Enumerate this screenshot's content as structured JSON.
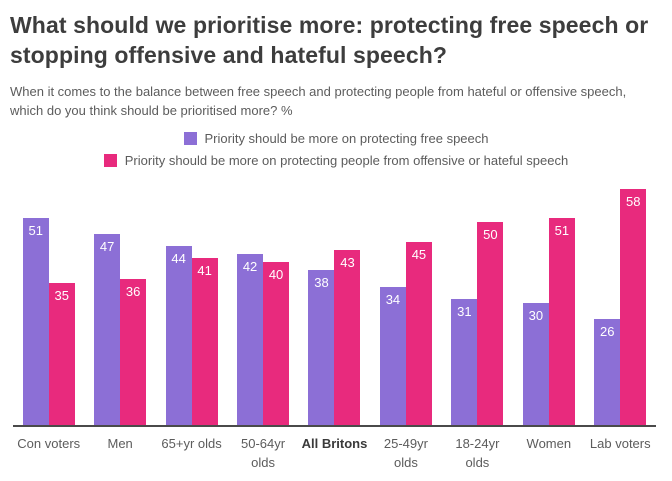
{
  "header": {
    "title": "What should we prioritise more: protecting free speech or stopping offensive and hateful speech?",
    "subtitle": "When it comes to the balance between free speech and protecting people from hateful or offensive speech, which do you think should be prioritised more? %"
  },
  "chart_data": {
    "type": "bar",
    "title": "What should we prioritise more: protecting free speech or stopping offensive and hateful speech?",
    "subtitle": "When it comes to the balance between free speech and protecting people from hateful or offensive speech, which do you think should be prioritised more? %",
    "categories": [
      "Con voters",
      "Men",
      "65+yr olds",
      "50-64yr olds",
      "All Britons",
      "25-49yr olds",
      "18-24yr olds",
      "Women",
      "Lab voters"
    ],
    "series": [
      {
        "name": "Priority should be more on protecting free speech",
        "color": "#8c6fd6",
        "values": [
          51,
          47,
          44,
          42,
          38,
          34,
          31,
          30,
          26
        ]
      },
      {
        "name": "Priority should be more on protecting people from offensive or hateful speech",
        "color": "#e82a7d",
        "values": [
          35,
          36,
          41,
          40,
          43,
          45,
          50,
          51,
          58
        ]
      }
    ],
    "ylim": [
      0,
      60
    ],
    "grid": false,
    "legend_position": "top",
    "value_labels": "inside-top",
    "emphasis_category": "All Britons",
    "xlabel": "",
    "ylabel": ""
  },
  "colors": {
    "title_text": "#3d3d3d",
    "body_text": "#5c5c5c",
    "axis_line": "#4a4a4a",
    "value_label_text": "#ffffff"
  }
}
